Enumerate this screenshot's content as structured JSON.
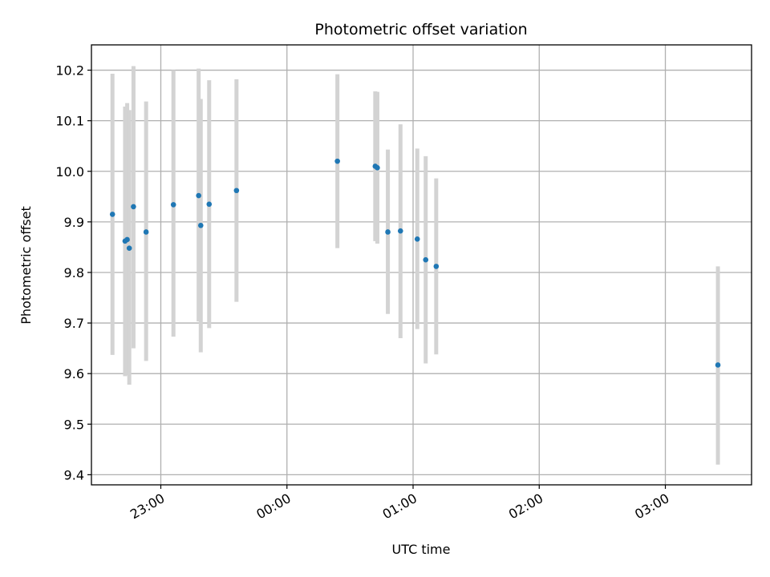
{
  "chart_data": {
    "type": "scatter",
    "title": "Photometric offset variation",
    "xlabel": "UTC time",
    "ylabel": "Photometric offset",
    "x_axis_type": "time",
    "x_ticks": [
      "23:00",
      "00:00",
      "01:00",
      "02:00",
      "03:00"
    ],
    "y_ticks": [
      "9.4",
      "9.5",
      "9.6",
      "9.7",
      "9.8",
      "9.9",
      "10.0",
      "10.1",
      "10.2"
    ],
    "xlim": [
      "22:27",
      "03:41"
    ],
    "ylim": [
      9.38,
      10.25
    ],
    "grid": true,
    "legend": "none",
    "colors": {
      "points": "#1f77b4",
      "errorbars": "#d3d3d3"
    },
    "points": [
      {
        "x": "22:37",
        "y": 9.915,
        "ylow": 9.637,
        "yhigh": 10.193
      },
      {
        "x": "22:43",
        "y": 9.862,
        "ylow": 9.595,
        "yhigh": 10.128
      },
      {
        "x": "22:44",
        "y": 9.865,
        "ylow": 9.597,
        "yhigh": 10.135
      },
      {
        "x": "22:45",
        "y": 9.848,
        "ylow": 9.578,
        "yhigh": 10.121
      },
      {
        "x": "22:47",
        "y": 9.93,
        "ylow": 9.65,
        "yhigh": 10.208
      },
      {
        "x": "22:53",
        "y": 9.88,
        "ylow": 9.625,
        "yhigh": 10.138
      },
      {
        "x": "23:06",
        "y": 9.934,
        "ylow": 9.673,
        "yhigh": 10.2
      },
      {
        "x": "23:18",
        "y": 9.952,
        "ylow": 9.703,
        "yhigh": 10.203
      },
      {
        "x": "23:19",
        "y": 9.893,
        "ylow": 9.642,
        "yhigh": 10.143
      },
      {
        "x": "23:23",
        "y": 9.935,
        "ylow": 9.69,
        "yhigh": 10.18
      },
      {
        "x": "23:36",
        "y": 9.962,
        "ylow": 9.742,
        "yhigh": 10.182
      },
      {
        "x": "00:24",
        "y": 10.02,
        "ylow": 9.848,
        "yhigh": 10.192
      },
      {
        "x": "00:42",
        "y": 10.01,
        "ylow": 9.862,
        "yhigh": 10.158
      },
      {
        "x": "00:43",
        "y": 10.007,
        "ylow": 9.857,
        "yhigh": 10.157
      },
      {
        "x": "00:48",
        "y": 9.88,
        "ylow": 9.718,
        "yhigh": 10.043
      },
      {
        "x": "00:54",
        "y": 9.882,
        "ylow": 9.67,
        "yhigh": 10.093
      },
      {
        "x": "01:02",
        "y": 9.866,
        "ylow": 9.688,
        "yhigh": 10.045
      },
      {
        "x": "01:06",
        "y": 9.825,
        "ylow": 9.62,
        "yhigh": 10.03
      },
      {
        "x": "01:11",
        "y": 9.812,
        "ylow": 9.638,
        "yhigh": 9.986
      },
      {
        "x": "03:25",
        "y": 9.617,
        "ylow": 9.42,
        "yhigh": 9.812
      }
    ]
  }
}
